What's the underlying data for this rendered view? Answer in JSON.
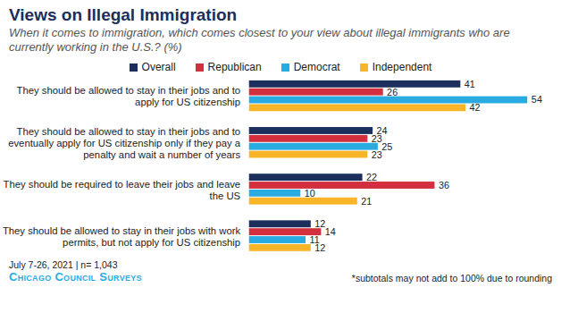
{
  "chart_data": {
    "type": "bar",
    "orientation": "horizontal",
    "title": "Views on Illegal Immigration",
    "subtitle": "When it comes to immigration, which comes closest to your view about illegal immigrants who are currently working in the U.S.? (%)",
    "categories": [
      "They should be allowed to stay in their jobs and to apply for US citizenship",
      "They should be allowed to stay in their jobs and to eventually apply for US citizenship only if they pay a penalty and wait a number of years",
      "They should be required to leave their jobs and leave the US",
      "They should be allowed to stay in their jobs with work permits, but not apply for US citizenship"
    ],
    "series": [
      {
        "name": "Overall",
        "color": "#1c2e5c",
        "values": [
          41,
          24,
          22,
          12
        ]
      },
      {
        "name": "Republican",
        "color": "#d32f3f",
        "values": [
          26,
          23,
          36,
          14
        ]
      },
      {
        "name": "Democrat",
        "color": "#29abe2",
        "values": [
          54,
          25,
          10,
          11
        ]
      },
      {
        "name": "Independent",
        "color": "#f9b529",
        "values": [
          42,
          23,
          21,
          12
        ]
      }
    ],
    "xlim": [
      0,
      54
    ],
    "tick_labels": "y",
    "data_labels": true,
    "legend": "top",
    "grid": false,
    "annotations": [
      "July 7-26, 2021 | n= 1,043",
      "*subtotals may not add to 100% due to rounding"
    ],
    "source": "Chicago Council Surveys"
  }
}
